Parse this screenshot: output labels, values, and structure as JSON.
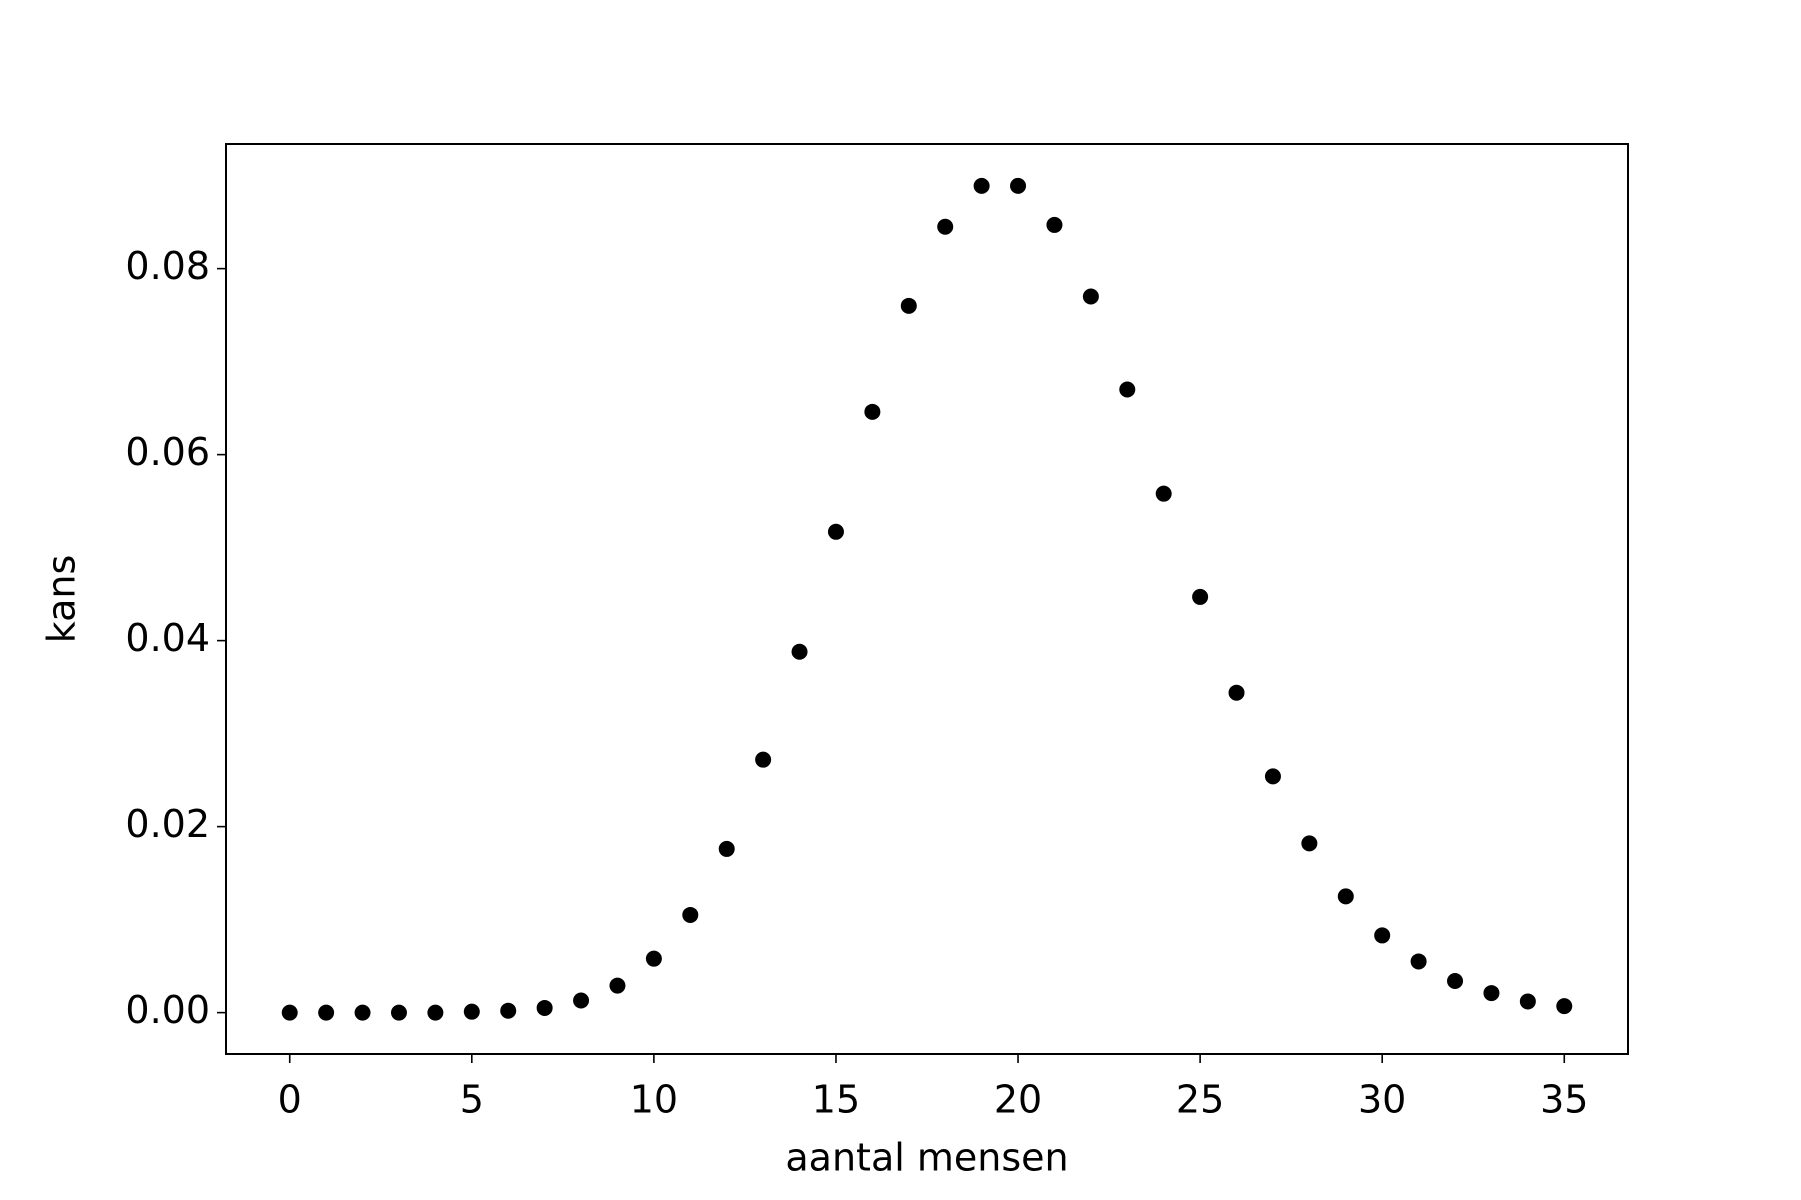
{
  "chart_data": {
    "type": "scatter",
    "xlabel": "aantal mensen",
    "ylabel": "kans",
    "x": [
      0,
      1,
      2,
      3,
      4,
      5,
      6,
      7,
      8,
      9,
      10,
      11,
      12,
      13,
      14,
      15,
      16,
      17,
      18,
      19,
      20,
      21,
      22,
      23,
      24,
      25,
      26,
      27,
      28,
      29,
      30,
      31,
      32,
      33,
      34,
      35
    ],
    "series": [
      {
        "color": "#000000",
        "values": [
          0,
          0,
          0,
          0,
          0,
          0.0001,
          0.0002,
          0.0005,
          0.0013,
          0.0029,
          0.0058,
          0.0105,
          0.0176,
          0.0272,
          0.0388,
          0.0517,
          0.0646,
          0.076,
          0.0845,
          0.0889,
          0.0889,
          0.0847,
          0.077,
          0.067,
          0.0558,
          0.0447,
          0.0344,
          0.0254,
          0.0182,
          0.0125,
          0.0083,
          0.0055,
          0.0034,
          0.0021,
          0.0012,
          0.0007
        ]
      }
    ],
    "xlim": [
      -1.75,
      36.75
    ],
    "ylim": [
      -0.00445,
      0.0934
    ],
    "xticks": [
      0,
      5,
      10,
      15,
      20,
      25,
      30,
      35
    ],
    "yticks": [
      {
        "value": 0,
        "label": "0.00"
      },
      {
        "value": 0.02,
        "label": "0.02"
      },
      {
        "value": 0.04,
        "label": "0.04"
      },
      {
        "value": 0.06,
        "label": "0.06"
      },
      {
        "value": 0.08,
        "label": "0.08"
      }
    ]
  }
}
